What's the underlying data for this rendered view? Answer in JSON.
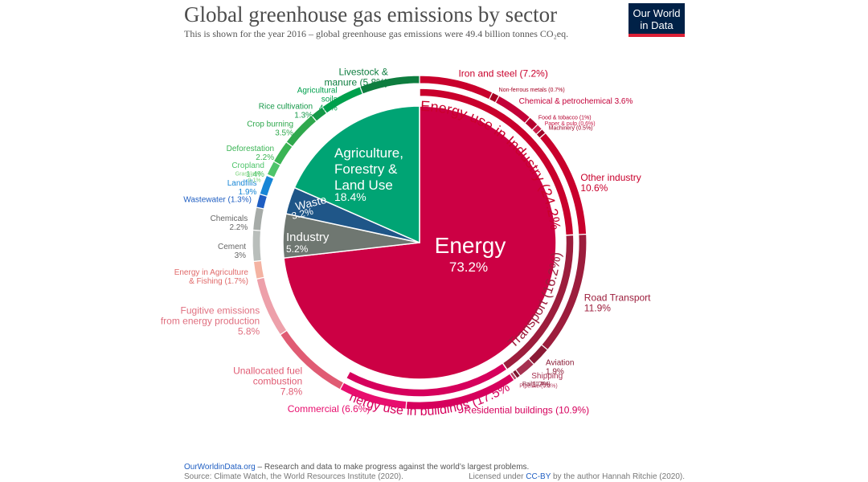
{
  "header": {
    "title": "Global greenhouse gas emissions by sector",
    "subtitle": "This is shown for the year 2016 – global greenhouse gas emissions were 49.4 billion tonnes CO₂eq."
  },
  "logo": {
    "line1": "Our World",
    "line2": "in Data"
  },
  "footer": {
    "site": "OurWorldinData.org",
    "tagline": " – Research and data to make progress against the world’s largest problems.",
    "source": "Source: Climate Watch, the World Resources Institute (2020).",
    "license_prefix": "Licensed under ",
    "license_link": "CC-BY",
    "license_suffix": " by the author Hannah Ritchie  (2020)."
  },
  "colors": {
    "energy": "#cc0044",
    "energy_industry": "#c9002c",
    "transport": "#9c1d3c",
    "buildings": "#d6005c",
    "unallocated": "#e05b73",
    "fugitive": "#eda0aa",
    "agri_energy": "#f4b3a2",
    "industry": "#6f7771",
    "industry_outer": "#b9bebb",
    "waste": "#1f5688",
    "wastewater": "#1f5ec2",
    "landfills": "#1786d6",
    "afolu": "#00a474",
    "afolu_outer": "#00a04d",
    "livestock": "#0e7d3f",
    "title": "#4d4d4d",
    "logo_bg": "#002147",
    "logo_bar": "#dc2036",
    "link": "#1f5ec2"
  },
  "chart_data": {
    "type": "pie",
    "unit": "%",
    "inner": [
      {
        "name": "Energy",
        "value": 73.2,
        "label": "Energy",
        "pct": "73.2%"
      },
      {
        "name": "Industry",
        "value": 5.2,
        "label": "Industry",
        "pct": "5.2%"
      },
      {
        "name": "Waste",
        "value": 3.2,
        "label": "Waste",
        "pct": "3.2%"
      },
      {
        "name": "Agriculture, Forestry & Land Use",
        "value": 18.4,
        "label_lines": [
          "Agriculture,",
          "Forestry &",
          "Land Use"
        ],
        "pct": "18.4%"
      }
    ],
    "middle": [
      {
        "name": "Energy use in Industry",
        "value": 24.2,
        "label": "Energy use in Industry (24.2%)"
      },
      {
        "name": "Transport",
        "value": 16.2,
        "label": "Transport (16.2%)"
      },
      {
        "name": "Energy use in buildings",
        "value": 17.5,
        "label": "Energy use in buildings (17.5%)"
      }
    ],
    "outer": [
      {
        "name": "Iron and steel",
        "value": 7.2,
        "text": "Iron and steel (7.2%)"
      },
      {
        "name": "Non-ferrous metals",
        "value": 0.7,
        "text": "Non-ferrous metals (0.7%)"
      },
      {
        "name": "Chemical & petrochemical",
        "value": 3.6,
        "text": "Chemical & petrochemical 3.6%"
      },
      {
        "name": "Food & tobacco",
        "value": 1.0,
        "text": "Food & tobacco (1%)"
      },
      {
        "name": "Paper & pulp",
        "value": 0.6,
        "text": "Paper & pulp (0.6%)"
      },
      {
        "name": "Machinery",
        "value": 0.5,
        "text": "Machinery (0.5%)"
      },
      {
        "name": "Other industry",
        "value": 10.6,
        "lines": [
          "Other industry",
          "10.6%"
        ]
      },
      {
        "name": "Road Transport",
        "value": 11.9,
        "lines": [
          "Road Transport",
          "11.9%"
        ]
      },
      {
        "name": "Aviation",
        "value": 1.9,
        "lines": [
          "Aviation",
          "1.9%"
        ]
      },
      {
        "name": "Shipping",
        "value": 1.7,
        "lines": [
          "Shipping",
          "1.7%"
        ]
      },
      {
        "name": "Rail",
        "value": 0.4,
        "text": "Rail (0.4%)"
      },
      {
        "name": "Pipeline",
        "value": 0.3,
        "text": "Pipeline (0.3%)"
      },
      {
        "name": "Residential buildings",
        "value": 10.9,
        "text": "Residential buildings (10.9%)"
      },
      {
        "name": "Commercial",
        "value": 6.6,
        "text": "Commercial (6.6%)"
      },
      {
        "name": "Unallocated fuel combustion",
        "value": 7.8,
        "lines": [
          "Unallocated fuel",
          "combustion",
          "7.8%"
        ]
      },
      {
        "name": "Fugitive emissions from energy production",
        "value": 5.8,
        "lines": [
          "Fugitive emissions",
          "from energy production",
          "5.8%"
        ]
      },
      {
        "name": "Energy in Agriculture & Fishing",
        "value": 1.7,
        "lines": [
          "Energy in Agriculture",
          "& Fishing (1.7%)"
        ]
      },
      {
        "name": "Cement",
        "value": 3.0,
        "lines": [
          "Cement",
          "3%"
        ]
      },
      {
        "name": "Chemicals",
        "value": 2.2,
        "lines": [
          "Chemicals",
          "2.2%"
        ]
      },
      {
        "name": "Wastewater",
        "value": 1.3,
        "text": "Wastewater (1.3%)"
      },
      {
        "name": "Landfills",
        "value": 1.9,
        "lines": [
          "Landfills",
          "1.9%"
        ]
      },
      {
        "name": "Grassland",
        "value": 0.1,
        "lines": [
          "Grassland",
          "0.1%"
        ]
      },
      {
        "name": "Cropland",
        "value": 1.4,
        "lines": [
          "Cropland",
          "1.4%"
        ]
      },
      {
        "name": "Deforestation",
        "value": 2.2,
        "lines": [
          "Deforestation",
          "2.2%"
        ]
      },
      {
        "name": "Crop burning",
        "value": 3.5,
        "lines": [
          "Crop burning",
          "3.5%"
        ]
      },
      {
        "name": "Rice cultivation",
        "value": 1.3,
        "lines": [
          "Rice cultivation",
          "1.3%"
        ]
      },
      {
        "name": "Agricultural soils",
        "value": 4.1,
        "lines": [
          "Agricultural",
          "soils",
          "4.1%"
        ]
      },
      {
        "name": "Livestock & manure",
        "value": 5.8,
        "lines": [
          "Livestock &",
          "manure (5.8%)"
        ]
      }
    ]
  }
}
